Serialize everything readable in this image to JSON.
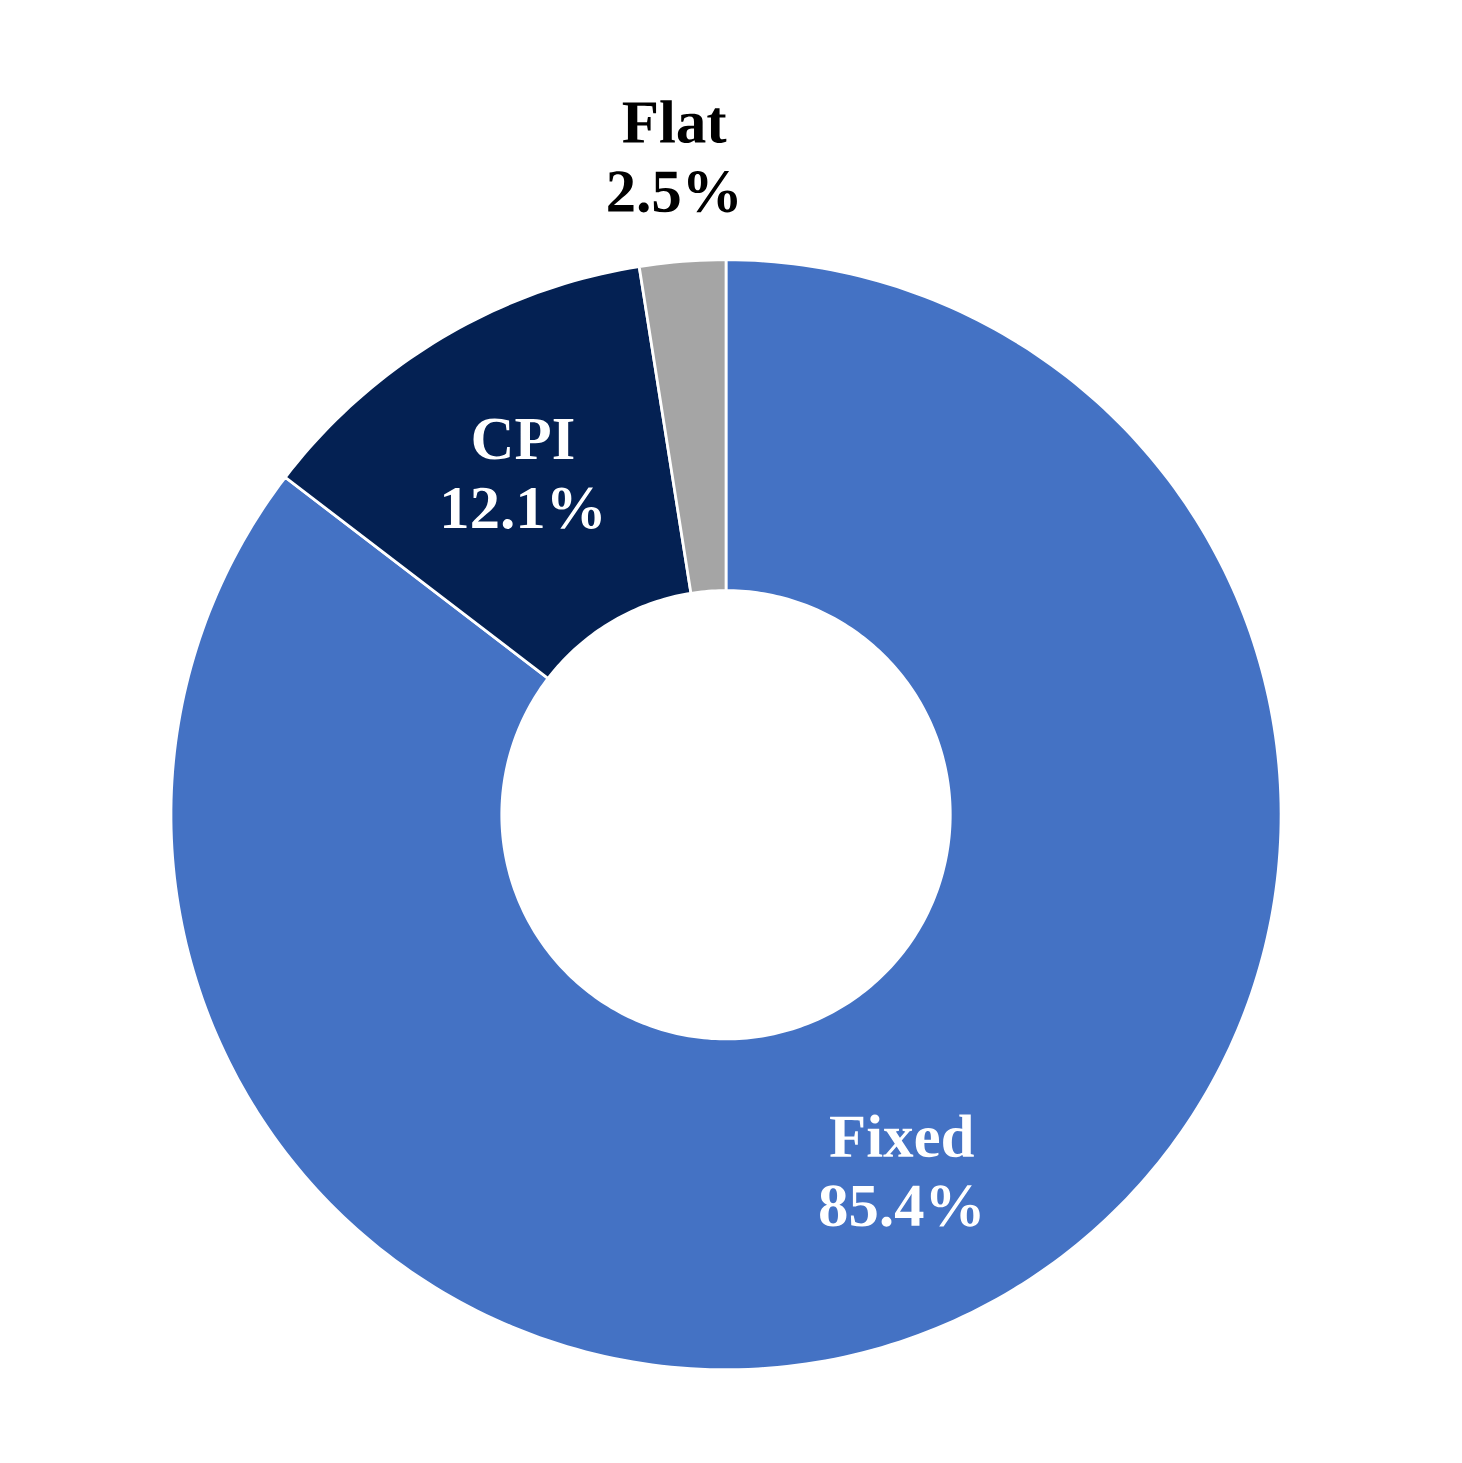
{
  "chart_data": {
    "type": "donut",
    "categories": [
      "Fixed",
      "CPI",
      "Flat"
    ],
    "values": [
      85.4,
      12.1,
      2.5
    ],
    "colors": [
      "#4472c4",
      "#042153",
      "#a5a5a5"
    ],
    "value_labels": [
      "85.4%",
      "12.1%",
      "2.5%"
    ]
  }
}
